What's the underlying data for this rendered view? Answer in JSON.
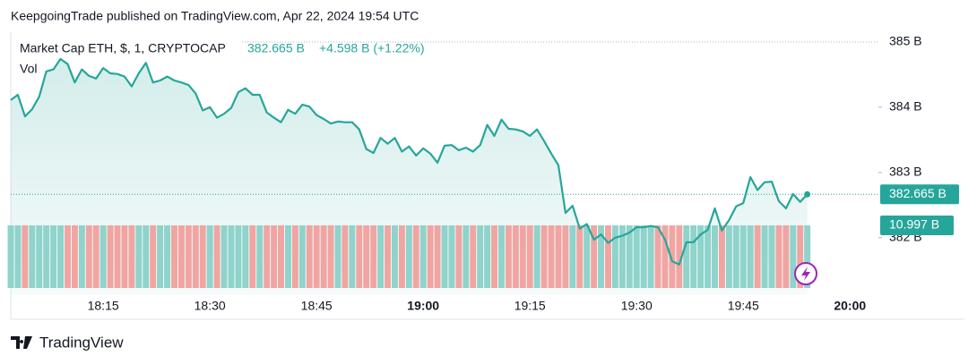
{
  "header": "KeepgoingTrade published on TradingView.com, Apr 22, 2024 19:54 UTC",
  "footer": "TradingView",
  "chart_data": [
    {
      "type": "line",
      "title": "Market Cap ETH, $, 1, CRYPTOCAP",
      "last_value": "382.665 B",
      "change": "+4.598 B (+1.22%)",
      "color": "#26a69a",
      "x": [
        "18:02",
        "18:03",
        "18:04",
        "18:05",
        "18:06",
        "18:07",
        "18:08",
        "18:09",
        "18:10",
        "18:11",
        "18:12",
        "18:13",
        "18:14",
        "18:15",
        "18:16",
        "18:17",
        "18:18",
        "18:19",
        "18:20",
        "18:21",
        "18:22",
        "18:23",
        "18:24",
        "18:25",
        "18:26",
        "18:27",
        "18:28",
        "18:29",
        "18:30",
        "18:31",
        "18:32",
        "18:33",
        "18:34",
        "18:35",
        "18:36",
        "18:37",
        "18:38",
        "18:39",
        "18:40",
        "18:41",
        "18:42",
        "18:43",
        "18:44",
        "18:45",
        "18:46",
        "18:47",
        "18:48",
        "18:49",
        "18:50",
        "18:51",
        "18:52",
        "18:53",
        "18:54",
        "18:55",
        "18:56",
        "18:57",
        "18:58",
        "18:59",
        "19:00",
        "19:01",
        "19:02",
        "19:03",
        "19:04",
        "19:05",
        "19:06",
        "19:07",
        "19:08",
        "19:09",
        "19:10",
        "19:11",
        "19:12",
        "19:13",
        "19:14",
        "19:15",
        "19:16",
        "19:17",
        "19:18",
        "19:19",
        "19:20",
        "19:21",
        "19:22",
        "19:23",
        "19:24",
        "19:25",
        "19:26",
        "19:27",
        "19:28",
        "19:29",
        "19:30",
        "19:31",
        "19:32",
        "19:33",
        "19:34",
        "19:35",
        "19:36",
        "19:37",
        "19:38",
        "19:39",
        "19:40",
        "19:41",
        "19:42",
        "19:43",
        "19:44",
        "19:45",
        "19:46",
        "19:47",
        "19:48",
        "19:49",
        "19:50",
        "19:51",
        "19:52",
        "19:53",
        "19:54"
      ],
      "values": [
        384.11,
        384.19,
        383.86,
        383.97,
        384.16,
        384.55,
        384.58,
        384.74,
        384.66,
        384.38,
        384.58,
        384.48,
        384.44,
        384.6,
        384.52,
        384.51,
        384.47,
        384.32,
        384.52,
        384.68,
        384.38,
        384.41,
        384.47,
        384.41,
        384.38,
        384.34,
        384.21,
        383.95,
        384.0,
        383.84,
        383.9,
        383.99,
        384.23,
        384.29,
        384.19,
        384.19,
        383.92,
        383.84,
        383.77,
        383.96,
        383.9,
        384.04,
        384.01,
        383.88,
        383.82,
        383.75,
        383.78,
        383.77,
        383.77,
        383.66,
        383.36,
        383.3,
        383.53,
        383.44,
        383.53,
        383.32,
        383.4,
        383.26,
        383.37,
        383.29,
        383.15,
        383.41,
        383.42,
        383.34,
        383.38,
        383.32,
        383.42,
        383.73,
        383.56,
        383.81,
        383.67,
        383.66,
        383.63,
        383.56,
        383.66,
        383.48,
        383.29,
        383.11,
        382.38,
        382.49,
        382.14,
        382.21,
        381.97,
        382.05,
        381.92,
        382.0,
        382.03,
        382.08,
        382.16,
        382.16,
        382.18,
        382.16,
        381.97,
        381.64,
        381.59,
        381.93,
        381.93,
        382.05,
        382.12,
        382.45,
        382.11,
        382.27,
        382.48,
        382.53,
        382.93,
        382.73,
        382.85,
        382.86,
        382.56,
        382.45,
        382.67,
        382.55,
        382.665
      ],
      "xlim": [
        "18:02",
        "20:04"
      ],
      "xticks": [
        "18:15",
        "18:30",
        "18:45",
        "19:00",
        "19:15",
        "19:30",
        "19:45",
        "20:00"
      ],
      "ylim": [
        381.12,
        385.15
      ],
      "yticks": [
        {
          "value": 385,
          "label": "385 B"
        },
        {
          "value": 384,
          "label": "384 B"
        },
        {
          "value": 383,
          "label": "383 B"
        },
        {
          "value": 382,
          "label": "382 B"
        }
      ]
    },
    {
      "type": "bar",
      "title": "Vol",
      "last_value": "10.997 B",
      "up_color": "#8fd3cb",
      "down_color": "#f0a5a2",
      "ylim": [
        0,
        11
      ],
      "values": [
        11,
        11,
        11,
        11,
        11,
        11,
        11,
        11,
        11,
        11,
        11,
        11,
        11,
        11,
        11,
        11,
        11,
        11,
        11,
        11,
        11,
        11,
        11,
        11,
        11,
        11,
        11,
        11,
        11,
        11,
        11,
        11,
        11,
        11,
        11,
        11,
        11,
        11,
        11,
        11,
        11,
        11,
        11,
        11,
        11,
        11,
        11,
        11,
        11,
        11,
        11,
        11,
        11,
        11,
        11,
        11,
        11,
        11,
        11,
        11,
        11,
        11,
        11,
        11,
        11,
        11,
        11,
        11,
        11,
        11,
        11,
        11,
        11,
        11,
        11,
        11,
        11,
        11,
        11,
        11,
        11,
        11,
        11,
        11,
        11,
        11,
        11,
        11,
        11,
        11,
        11,
        11,
        11,
        11,
        11,
        11,
        11,
        11,
        11,
        11,
        11,
        11,
        11,
        11,
        11,
        11,
        11,
        11,
        11,
        11,
        11,
        11,
        10.997
      ]
    }
  ]
}
